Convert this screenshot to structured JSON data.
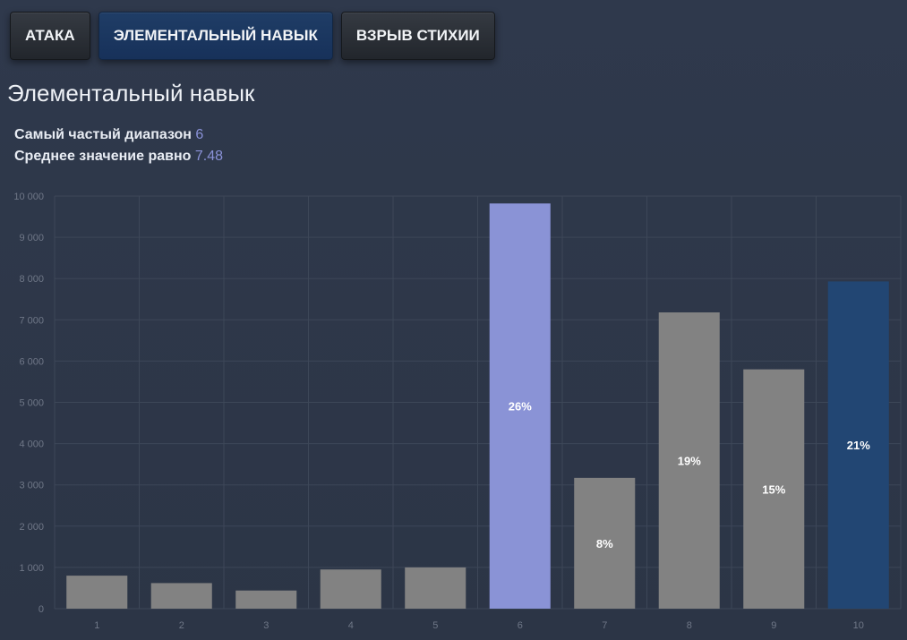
{
  "tabs": [
    {
      "label": "АТАКА",
      "active": false
    },
    {
      "label": "ЭЛЕМЕНТАЛЬНЫЙ НАВЫК",
      "active": true
    },
    {
      "label": "ВЗРЫВ СТИХИИ",
      "active": false
    }
  ],
  "title": "Элементальный навык",
  "stats": {
    "mode_label": "Самый частый диапазон",
    "mode_value": "6",
    "mean_label": "Среднее значение равно",
    "mean_value": "7.48"
  },
  "colors": {
    "bar_default": "#828282",
    "bar_mode": "#8a93d6",
    "bar_highlight": "#224673",
    "accent_text": "#8a92d8",
    "grid": "#3d4758",
    "tick_text": "#6f7787"
  },
  "chart_data": {
    "type": "bar",
    "categories": [
      "1",
      "2",
      "3",
      "4",
      "5",
      "6",
      "7",
      "8",
      "9",
      "10"
    ],
    "values": [
      800,
      620,
      440,
      950,
      1000,
      9820,
      3170,
      7180,
      5800,
      7930
    ],
    "bar_labels": [
      "",
      "",
      "",
      "",
      "",
      "26%",
      "8%",
      "19%",
      "15%",
      "21%"
    ],
    "highlight": {
      "6": "bar_mode",
      "10": "bar_highlight"
    },
    "ylim": [
      0,
      10000
    ],
    "yticks": [
      0,
      1000,
      2000,
      3000,
      4000,
      5000,
      6000,
      7000,
      8000,
      9000,
      10000
    ],
    "ytick_labels": [
      "0",
      "1 000",
      "2 000",
      "3 000",
      "4 000",
      "5 000",
      "6 000",
      "7 000",
      "8 000",
      "9 000",
      "10 000"
    ],
    "grid": true,
    "xlabel": "",
    "ylabel": ""
  }
}
